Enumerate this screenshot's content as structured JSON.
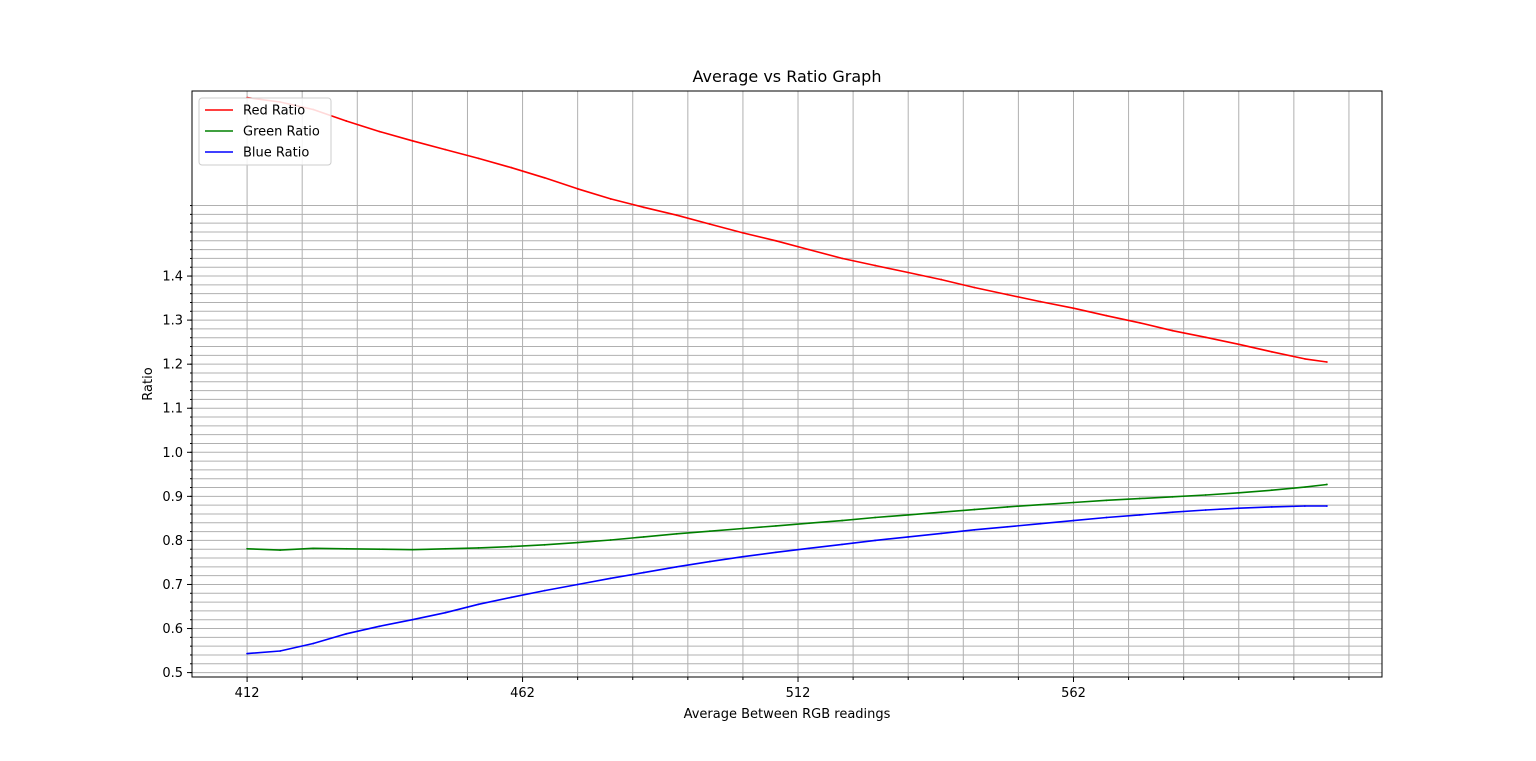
{
  "chart_data": {
    "type": "line",
    "title": "Average vs Ratio Graph",
    "xlabel": "Average Between RGB readings",
    "ylabel": "Ratio",
    "xlim": [
      402,
      618
    ],
    "ylim": [
      0.49,
      1.82
    ],
    "x_major_ticks": [
      412,
      462,
      512,
      562
    ],
    "x_minor_step": 10,
    "y_major_ticks": [
      0.5,
      0.6,
      0.7,
      0.8,
      0.9,
      1.0,
      1.1,
      1.2,
      1.3,
      1.4
    ],
    "y_tick_labels": [
      "0.5",
      "0.6",
      "0.7",
      "0.8",
      "0.9",
      "1.0",
      "1.1",
      "1.2",
      "1.3",
      "1.4"
    ],
    "y_minor_step": 0.02,
    "y_minor_max": 1.56,
    "grid": "both",
    "legend_position": "top-left",
    "x": [
      412,
      418,
      424,
      430,
      436,
      442,
      448,
      454,
      460,
      466,
      472,
      478,
      484,
      490,
      496,
      502,
      508,
      514,
      520,
      526,
      532,
      538,
      544,
      550,
      556,
      562,
      568,
      574,
      580,
      586,
      592,
      598,
      604,
      608
    ],
    "series": [
      {
        "name": "Red Ratio",
        "color": "#ff0000",
        "values": [
          1.805,
          1.795,
          1.778,
          1.752,
          1.728,
          1.707,
          1.687,
          1.667,
          1.646,
          1.623,
          1.598,
          1.575,
          1.556,
          1.538,
          1.518,
          1.498,
          1.48,
          1.46,
          1.44,
          1.424,
          1.408,
          1.392,
          1.374,
          1.358,
          1.342,
          1.327,
          1.31,
          1.294,
          1.276,
          1.261,
          1.245,
          1.228,
          1.212,
          1.205
        ]
      },
      {
        "name": "Green Ratio",
        "color": "#008000",
        "values": [
          0.781,
          0.778,
          0.782,
          0.781,
          0.78,
          0.779,
          0.781,
          0.783,
          0.786,
          0.79,
          0.795,
          0.801,
          0.808,
          0.815,
          0.821,
          0.827,
          0.833,
          0.839,
          0.845,
          0.852,
          0.858,
          0.864,
          0.87,
          0.876,
          0.881,
          0.886,
          0.891,
          0.895,
          0.899,
          0.903,
          0.908,
          0.914,
          0.921,
          0.927
        ]
      },
      {
        "name": "Blue Ratio",
        "color": "#0000ff",
        "values": [
          0.543,
          0.549,
          0.566,
          0.588,
          0.605,
          0.62,
          0.636,
          0.655,
          0.671,
          0.686,
          0.7,
          0.714,
          0.727,
          0.74,
          0.752,
          0.763,
          0.773,
          0.782,
          0.791,
          0.8,
          0.808,
          0.816,
          0.824,
          0.831,
          0.838,
          0.845,
          0.852,
          0.858,
          0.864,
          0.869,
          0.873,
          0.876,
          0.878,
          0.878
        ]
      }
    ]
  }
}
